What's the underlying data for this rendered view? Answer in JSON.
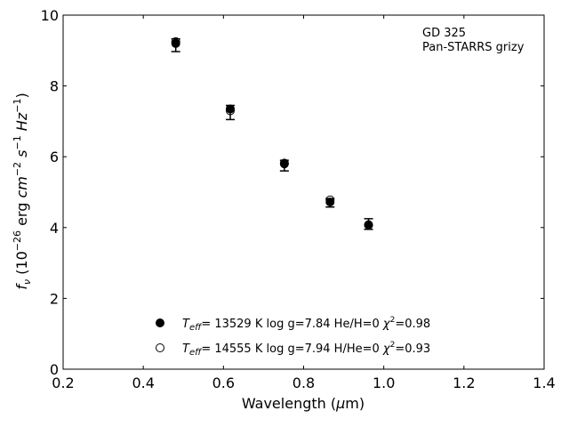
{
  "chart_data": {
    "type": "scatter",
    "xlabel": "Wavelength (μm)",
    "ylabel": "f_ν (10^-26 erg cm^-2 s^-1 Hz^-1)",
    "xlim": [
      0.2,
      1.4
    ],
    "ylim": [
      0,
      10
    ],
    "xticks": [
      "0.2",
      "0.4",
      "0.6",
      "0.8",
      "1.0",
      "1.2",
      "1.4"
    ],
    "yticks": [
      "0",
      "2",
      "4",
      "6",
      "8",
      "10"
    ],
    "grid": false,
    "legend_position": "bottom-center",
    "annotation": [
      "GD 325",
      "Pan-STARRS grizy"
    ],
    "observed": {
      "x": [
        0.481,
        0.617,
        0.752,
        0.866,
        0.962
      ],
      "y": [
        9.15,
        7.25,
        5.75,
        4.7,
        4.1
      ],
      "yerr": [
        0.18,
        0.2,
        0.15,
        0.12,
        0.15
      ]
    },
    "series": [
      {
        "name": "Teff= 13529 K  log g=7.84  He/H=0  χ²=0.98",
        "marker": "filled-circle",
        "x": [
          0.481,
          0.617,
          0.752,
          0.866,
          0.962
        ],
        "y": [
          9.2,
          7.35,
          5.8,
          4.72,
          4.07
        ]
      },
      {
        "name": "Teff= 14555 K  log g=7.94  H/He=0  χ²=0.93",
        "marker": "open-circle",
        "x": [
          0.481,
          0.617,
          0.752,
          0.866,
          0.962
        ],
        "y": [
          9.25,
          7.3,
          5.82,
          4.78,
          4.08
        ]
      }
    ]
  }
}
